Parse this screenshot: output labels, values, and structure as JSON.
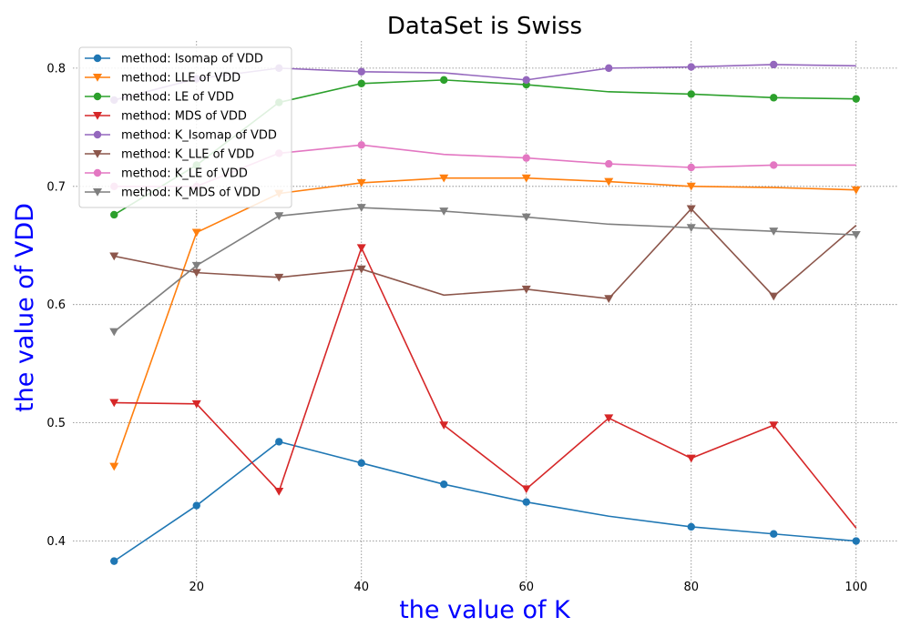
{
  "chart_data": {
    "type": "line",
    "title": "DataSet is Swiss",
    "xlabel": "the value of K",
    "ylabel": "the value of VDD",
    "x": [
      10,
      20,
      30,
      40,
      50,
      60,
      70,
      80,
      90,
      100
    ],
    "xticks": [
      20,
      40,
      60,
      80,
      100
    ],
    "yticks": [
      0.4,
      0.5,
      0.6,
      0.7,
      0.8
    ],
    "xlim": [
      5,
      105
    ],
    "ylim": [
      0.365,
      0.823
    ],
    "grid": true,
    "legend_position": "top-left",
    "series": [
      {
        "name": "method: Isomap of VDD",
        "color": "#1f77b4",
        "marker": "circle",
        "markevery": [
          10,
          20,
          30,
          40,
          50,
          60,
          80,
          90,
          100
        ],
        "values": [
          0.383,
          0.43,
          0.484,
          0.466,
          0.448,
          0.433,
          0.421,
          0.412,
          0.406,
          0.4
        ]
      },
      {
        "name": "method: LLE of VDD",
        "color": "#ff7f0e",
        "marker": "triangle-down",
        "markevery": [
          10,
          20,
          30,
          40,
          50,
          60,
          70,
          80,
          100
        ],
        "values": [
          0.463,
          0.661,
          0.694,
          0.703,
          0.707,
          0.707,
          0.704,
          0.7,
          0.699,
          0.697
        ]
      },
      {
        "name": "method: LE of VDD",
        "color": "#2ca02c",
        "marker": "circle",
        "markevery": [
          10,
          20,
          30,
          40,
          50,
          60,
          80,
          90,
          100
        ],
        "values": [
          0.676,
          0.718,
          0.771,
          0.787,
          0.79,
          0.786,
          0.78,
          0.778,
          0.775,
          0.774
        ]
      },
      {
        "name": "method: MDS of VDD",
        "color": "#d62728",
        "marker": "triangle-down",
        "markevery": [
          10,
          20,
          30,
          40,
          50,
          60,
          70,
          80,
          90
        ],
        "values": [
          0.517,
          0.516,
          0.442,
          0.648,
          0.498,
          0.444,
          0.504,
          0.47,
          0.498,
          0.411
        ]
      },
      {
        "name": "method: K_Isomap of VDD",
        "color": "#9467bd",
        "marker": "circle",
        "markevery": [
          10,
          20,
          30,
          40,
          60,
          70,
          80,
          90
        ],
        "values": [
          0.773,
          0.791,
          0.8,
          0.797,
          0.796,
          0.79,
          0.8,
          0.801,
          0.803,
          0.802
        ]
      },
      {
        "name": "method: K_LLE of VDD",
        "color": "#8c564b",
        "marker": "triangle-down",
        "markevery": [
          10,
          20,
          30,
          40,
          60,
          70,
          80,
          90
        ],
        "values": [
          0.641,
          0.627,
          0.623,
          0.63,
          0.608,
          0.613,
          0.605,
          0.681,
          0.607,
          0.667
        ]
      },
      {
        "name": "method: K_LE of VDD",
        "color": "#e377c2",
        "marker": "circle",
        "markevery": [
          10,
          20,
          30,
          40,
          60,
          70,
          80,
          90
        ],
        "values": [
          0.7,
          0.7,
          0.728,
          0.735,
          0.727,
          0.724,
          0.719,
          0.716,
          0.718,
          0.718
        ]
      },
      {
        "name": "method: K_MDS of VDD",
        "color": "#7f7f7f",
        "marker": "triangle-down",
        "markevery": [
          10,
          20,
          30,
          40,
          50,
          60,
          80,
          90,
          100
        ],
        "values": [
          0.577,
          0.633,
          0.675,
          0.682,
          0.679,
          0.674,
          0.668,
          0.665,
          0.662,
          0.659
        ]
      }
    ]
  }
}
